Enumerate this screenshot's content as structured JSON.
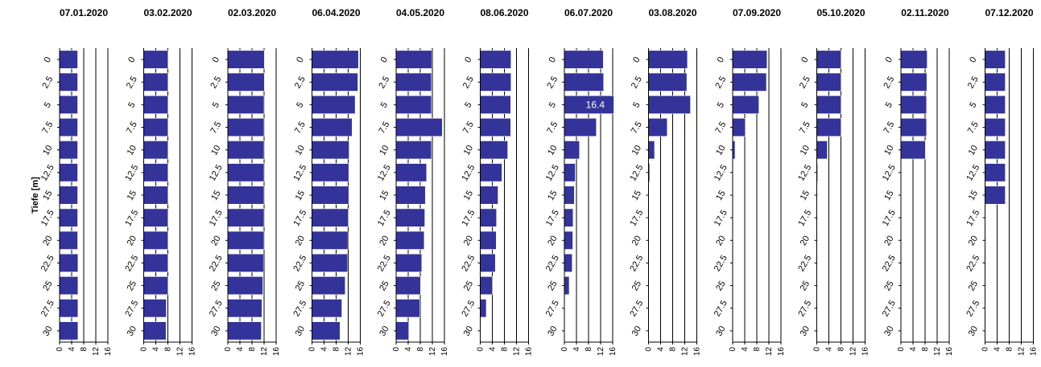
{
  "chart_data": {
    "type": "bar",
    "orientation": "horizontal",
    "ylabel": "Tiefe [m]",
    "depth_categories": [
      "0",
      "2.5",
      "5",
      "7.5",
      "10",
      "12.5",
      "15",
      "17.5",
      "20",
      "22.5",
      "25",
      "27.5",
      "30"
    ],
    "xlim": [
      0,
      16
    ],
    "xticks": [
      "0",
      "4",
      "8",
      "12",
      "16"
    ],
    "grid": "vertical",
    "bar_color": "#333399",
    "panels": [
      {
        "title": "07.01.2020",
        "values": [
          6.0,
          6.0,
          6.0,
          6.0,
          6.0,
          6.0,
          6.0,
          6.0,
          6.0,
          6.1,
          6.1,
          6.1,
          6.1
        ]
      },
      {
        "title": "03.02.2020",
        "values": [
          8.0,
          8.0,
          8.0,
          8.0,
          8.0,
          8.0,
          8.0,
          8.0,
          8.0,
          8.0,
          8.0,
          7.5,
          7.4
        ]
      },
      {
        "title": "02.03.2020",
        "values": [
          12.1,
          12.1,
          12.0,
          12.0,
          12.0,
          12.0,
          12.0,
          12.0,
          12.0,
          11.8,
          11.6,
          11.3,
          11.1
        ]
      },
      {
        "title": "06.04.2020",
        "values": [
          15.4,
          15.2,
          14.3,
          13.3,
          12.3,
          12.2,
          12.2,
          12.0,
          11.9,
          11.8,
          11.0,
          9.9,
          9.3
        ]
      },
      {
        "title": "04.05.2020",
        "values": [
          11.8,
          11.7,
          11.7,
          15.3,
          11.7,
          10.1,
          9.7,
          9.5,
          9.3,
          8.5,
          8.1,
          7.9,
          4.2
        ]
      },
      {
        "title": "08.06.2020",
        "values": [
          10.2,
          10.2,
          10.1,
          10.1,
          9.1,
          7.2,
          5.9,
          5.4,
          5.3,
          5.0,
          4.0,
          2.0,
          null
        ]
      },
      {
        "title": "06.07.2020",
        "values": [
          12.9,
          13.0,
          16.4,
          10.6,
          5.0,
          3.6,
          3.3,
          2.9,
          2.8,
          2.6,
          1.6,
          null,
          null
        ]
      },
      {
        "title": "03.08.2020",
        "values": [
          12.9,
          12.7,
          13.9,
          6.2,
          2.0,
          0.4,
          null,
          0.2,
          null,
          null,
          null,
          null,
          null
        ]
      },
      {
        "title": "07.09.2020",
        "values": [
          11.4,
          11.2,
          8.7,
          4.2,
          0.8,
          null,
          null,
          null,
          null,
          null,
          null,
          null,
          null
        ]
      },
      {
        "title": "05.10.2020",
        "values": [
          8.0,
          8.0,
          8.0,
          8.0,
          3.5,
          0.3,
          null,
          null,
          null,
          null,
          null,
          null,
          null
        ]
      },
      {
        "title": "02.11.2020",
        "values": [
          8.7,
          8.6,
          8.5,
          8.5,
          8.1,
          null,
          null,
          null,
          null,
          null,
          null,
          null,
          null
        ]
      },
      {
        "title": "07.12.2020",
        "values": [
          6.7,
          6.7,
          6.7,
          6.7,
          6.7,
          6.7,
          6.7,
          null,
          null,
          null,
          null,
          null,
          null
        ]
      }
    ],
    "annotations": [
      {
        "panel": 6,
        "category": "5",
        "text": "16.4"
      }
    ]
  }
}
